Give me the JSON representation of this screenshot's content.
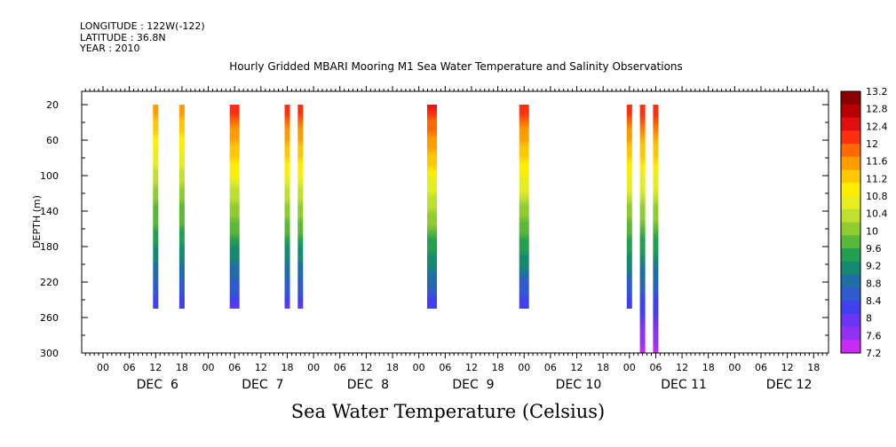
{
  "header": {
    "longitude": "LONGITUDE : 122W(-122)",
    "latitude": "LATITUDE : 36.8N",
    "year": "YEAR : 2010"
  },
  "chart_data": {
    "type": "heatmap",
    "title": "Hourly Gridded MBARI Mooring M1 Sea Water Temperature and Salinity Observations",
    "subtitle": "Sea Water Temperature (Celsius)",
    "ylabel": "DEPTH (m)",
    "ylim": [
      300,
      5
    ],
    "y_ticks": [
      20,
      60,
      100,
      140,
      180,
      220,
      260,
      300
    ],
    "x_hour_ticks": [
      "00",
      "06",
      "12",
      "18",
      "00",
      "06",
      "12",
      "18",
      "00",
      "06",
      "12",
      "18",
      "00",
      "06",
      "12",
      "18",
      "00",
      "06",
      "12",
      "18",
      "00",
      "06",
      "12",
      "18",
      "00",
      "06",
      "12",
      "18"
    ],
    "x_day_labels": [
      "DEC  6",
      "DEC  7",
      "DEC  8",
      "DEC  9",
      "DEC 10",
      "DEC 11",
      "DEC 12"
    ],
    "colorbar": {
      "levels": [
        "13.2",
        "12.8",
        "12.4",
        "12",
        "11.6",
        "11.2",
        "10.8",
        "10.4",
        "10",
        "9.6",
        "9.2",
        "8.8",
        "8.4",
        "8",
        "7.6",
        "7.2"
      ],
      "colors": [
        "#8b0000",
        "#b80000",
        "#e01010",
        "#ff3010",
        "#ff6a00",
        "#ff9c00",
        "#ffc800",
        "#ffee00",
        "#e6ee20",
        "#c0e030",
        "#90cc30",
        "#5ab838",
        "#22a050",
        "#168a70",
        "#1f6ea8",
        "#2f5ad0",
        "#4040ef",
        "#6a36f4",
        "#9330f6",
        "#c82cf6"
      ]
    },
    "series": [
      {
        "time_label": "DEC 6 12:00",
        "depth_top": 20,
        "depth_bottom": 250,
        "temp_top": 11.6,
        "temp_bottom": 8.2
      },
      {
        "time_label": "DEC 6 18:00",
        "depth_top": 20,
        "depth_bottom": 250,
        "temp_top": 11.6,
        "temp_bottom": 8.2
      },
      {
        "time_label": "DEC 7 06:00",
        "depth_top": 20,
        "depth_bottom": 250,
        "temp_top": 12.2,
        "temp_bottom": 8.1
      },
      {
        "time_label": "DEC 7 18:00",
        "depth_top": 20,
        "depth_bottom": 250,
        "temp_top": 12.2,
        "temp_bottom": 8.1
      },
      {
        "time_label": "DEC 7 21:00",
        "depth_top": 20,
        "depth_bottom": 250,
        "temp_top": 12.2,
        "temp_bottom": 8.1
      },
      {
        "time_label": "DEC 9 03:00",
        "depth_top": 20,
        "depth_bottom": 250,
        "temp_top": 12.3,
        "temp_bottom": 8.2
      },
      {
        "time_label": "DEC 10 00:00",
        "depth_top": 20,
        "depth_bottom": 250,
        "temp_top": 12.2,
        "temp_bottom": 8.2
      },
      {
        "time_label": "DEC 11 00:00",
        "depth_top": 20,
        "depth_bottom": 250,
        "temp_top": 12.2,
        "temp_bottom": 8.2
      },
      {
        "time_label": "DEC 11 03:00",
        "depth_top": 20,
        "depth_bottom": 300,
        "temp_top": 12.2,
        "temp_bottom": 7.4
      },
      {
        "time_label": "DEC 11 06:00",
        "depth_top": 20,
        "depth_bottom": 300,
        "temp_top": 12.2,
        "temp_bottom": 7.4
      }
    ]
  }
}
